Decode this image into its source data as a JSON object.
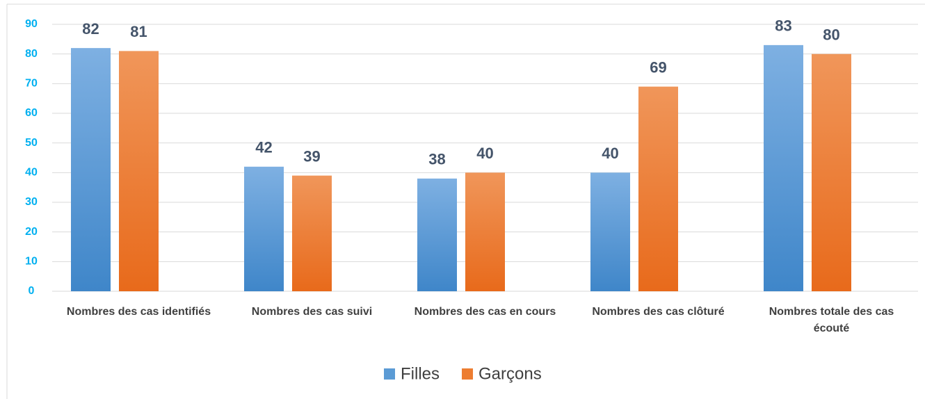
{
  "chart_data": {
    "type": "bar",
    "categories": [
      "Nombres des cas identifiés",
      "Nombres des cas suivi",
      "Nombres des cas en cours",
      "Nombres des cas clôturé",
      "Nombres totale des cas écouté"
    ],
    "series": [
      {
        "name": "Filles",
        "color": "#5b9bd5",
        "values": [
          82,
          42,
          38,
          40,
          83
        ]
      },
      {
        "name": "Garçons",
        "color": "#ed7d31",
        "values": [
          81,
          39,
          40,
          69,
          80
        ]
      }
    ],
    "ylim": [
      0,
      90
    ],
    "yticks": [
      0,
      10,
      20,
      30,
      40,
      50,
      60,
      70,
      80,
      90
    ],
    "grid": true,
    "legend": "bottom"
  }
}
